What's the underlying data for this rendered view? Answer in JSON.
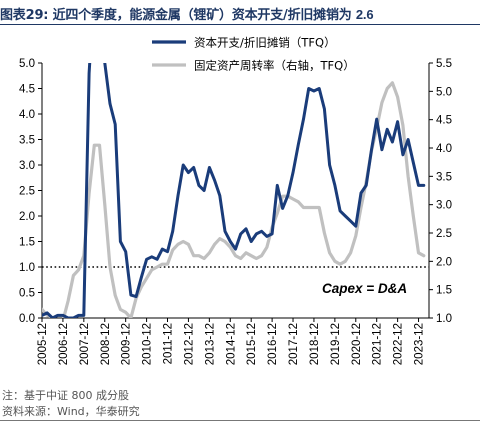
{
  "figure": {
    "label": "图表29:",
    "title": "近四个季度，能源金属（锂矿）资本开支/折旧摊销为",
    "title_value": "2.6"
  },
  "notes": {
    "line1": "注：基于中证 800 成分股",
    "line2": "资料来源：Wind，华泰研究"
  },
  "chart_data": {
    "type": "line",
    "x_tick_labels": [
      "2005-12",
      "2006-12",
      "2007-12",
      "2008-12",
      "2009-12",
      "2010-12",
      "2011-12",
      "2012-12",
      "2013-12",
      "2014-12",
      "2015-12",
      "2016-12",
      "2017-12",
      "2018-12",
      "2019-12",
      "2020-12",
      "2021-12",
      "2022-12",
      "2023-12"
    ],
    "x_range": [
      "2005-12",
      "2024-06"
    ],
    "y_left": {
      "min": 0.0,
      "max": 5.0,
      "ticks": [
        "0.0",
        "0.5",
        "1.0",
        "1.5",
        "2.0",
        "2.5",
        "3.0",
        "3.5",
        "4.0",
        "4.5",
        "5.0"
      ]
    },
    "y_right": {
      "min": 1.0,
      "max": 5.5,
      "ticks": [
        "1.0",
        "1.5",
        "2.0",
        "2.5",
        "3.0",
        "3.5",
        "4.0",
        "4.5",
        "5.0",
        "5.5"
      ]
    },
    "reference_line": {
      "y": 1.0,
      "axis": "left",
      "style": "dotted",
      "label": "Capex = D&A"
    },
    "legend_position": "top-right",
    "series": [
      {
        "name": "资本开支/折旧摊销（TFQ）",
        "axis": "left",
        "color": "#1a3c7a",
        "x": [
          "2005-12",
          "2006-03",
          "2006-06",
          "2006-09",
          "2006-12",
          "2007-03",
          "2007-06",
          "2007-09",
          "2007-12",
          "2008-03",
          "2008-06",
          "2008-09",
          "2008-12",
          "2009-03",
          "2009-06",
          "2009-09",
          "2009-12",
          "2010-03",
          "2010-06",
          "2010-09",
          "2010-12",
          "2011-03",
          "2011-06",
          "2011-09",
          "2011-12",
          "2012-03",
          "2012-06",
          "2012-09",
          "2012-12",
          "2013-03",
          "2013-06",
          "2013-09",
          "2013-12",
          "2014-03",
          "2014-06",
          "2014-09",
          "2014-12",
          "2015-03",
          "2015-06",
          "2015-09",
          "2015-12",
          "2016-03",
          "2016-06",
          "2016-09",
          "2016-12",
          "2017-03",
          "2017-06",
          "2017-09",
          "2017-12",
          "2018-03",
          "2018-06",
          "2018-09",
          "2018-12",
          "2019-03",
          "2019-06",
          "2019-09",
          "2019-12",
          "2020-03",
          "2020-06",
          "2020-09",
          "2020-12",
          "2021-03",
          "2021-06",
          "2021-09",
          "2021-12",
          "2022-03",
          "2022-06",
          "2022-09",
          "2022-12",
          "2023-03",
          "2023-06",
          "2023-09",
          "2023-12",
          "2024-03"
        ],
        "y": [
          0.05,
          0.1,
          0.0,
          0.05,
          0.05,
          0.0,
          0.0,
          0.05,
          0.05,
          4.8,
          6.5,
          6.5,
          5.0,
          4.2,
          3.8,
          1.5,
          1.3,
          0.45,
          0.42,
          0.8,
          1.15,
          1.2,
          1.15,
          1.35,
          1.3,
          1.7,
          2.4,
          3.0,
          2.85,
          2.95,
          2.6,
          2.5,
          2.95,
          2.7,
          2.4,
          1.7,
          1.5,
          1.35,
          1.65,
          1.75,
          1.5,
          1.65,
          1.7,
          1.6,
          1.65,
          2.6,
          2.15,
          2.4,
          2.85,
          3.4,
          3.9,
          4.5,
          4.45,
          4.5,
          4.1,
          3.0,
          2.6,
          2.1,
          2.0,
          1.9,
          1.8,
          2.45,
          2.6,
          3.3,
          3.9,
          3.3,
          3.7,
          3.45,
          3.85,
          3.2,
          3.5,
          3.05,
          2.6,
          2.6
        ]
      },
      {
        "name": "固定资产周转率（右轴，TFQ）",
        "axis": "right",
        "color": "#c0c0c0",
        "x": [
          "2005-12",
          "2006-03",
          "2006-06",
          "2006-09",
          "2006-12",
          "2007-03",
          "2007-06",
          "2007-09",
          "2007-12",
          "2008-03",
          "2008-06",
          "2008-09",
          "2008-12",
          "2009-03",
          "2009-06",
          "2009-09",
          "2009-12",
          "2010-03",
          "2010-06",
          "2010-09",
          "2010-12",
          "2011-03",
          "2011-06",
          "2011-09",
          "2011-12",
          "2012-03",
          "2012-06",
          "2012-09",
          "2012-12",
          "2013-03",
          "2013-06",
          "2013-09",
          "2013-12",
          "2014-03",
          "2014-06",
          "2014-09",
          "2014-12",
          "2015-03",
          "2015-06",
          "2015-09",
          "2015-12",
          "2016-03",
          "2016-06",
          "2016-09",
          "2016-12",
          "2017-03",
          "2017-06",
          "2017-09",
          "2017-12",
          "2018-03",
          "2018-06",
          "2018-09",
          "2018-12",
          "2019-03",
          "2019-06",
          "2019-09",
          "2019-12",
          "2020-03",
          "2020-06",
          "2020-09",
          "2020-12",
          "2021-03",
          "2021-06",
          "2021-09",
          "2021-12",
          "2022-03",
          "2022-06",
          "2022-09",
          "2022-12",
          "2023-03",
          "2023-06",
          "2023-09",
          "2023-12",
          "2024-03"
        ],
        "y": [
          1.15,
          1.05,
          1.0,
          0.9,
          0.95,
          1.3,
          1.75,
          1.85,
          2.1,
          3.2,
          4.05,
          4.05,
          3.0,
          1.9,
          1.4,
          1.15,
          1.1,
          1.0,
          1.35,
          1.55,
          1.7,
          1.85,
          1.9,
          1.95,
          1.95,
          2.2,
          2.3,
          2.35,
          2.3,
          2.1,
          2.1,
          2.05,
          2.15,
          2.3,
          2.4,
          2.35,
          2.25,
          2.1,
          2.05,
          2.15,
          2.1,
          2.05,
          2.1,
          2.25,
          2.6,
          2.85,
          3.15,
          3.15,
          3.1,
          3.05,
          2.95,
          2.95,
          2.95,
          2.95,
          2.5,
          2.15,
          2.0,
          1.95,
          2.0,
          2.15,
          2.45,
          2.95,
          3.4,
          3.95,
          4.35,
          4.8,
          5.05,
          5.15,
          4.9,
          4.4,
          3.5,
          2.8,
          2.15,
          2.1
        ]
      }
    ]
  }
}
